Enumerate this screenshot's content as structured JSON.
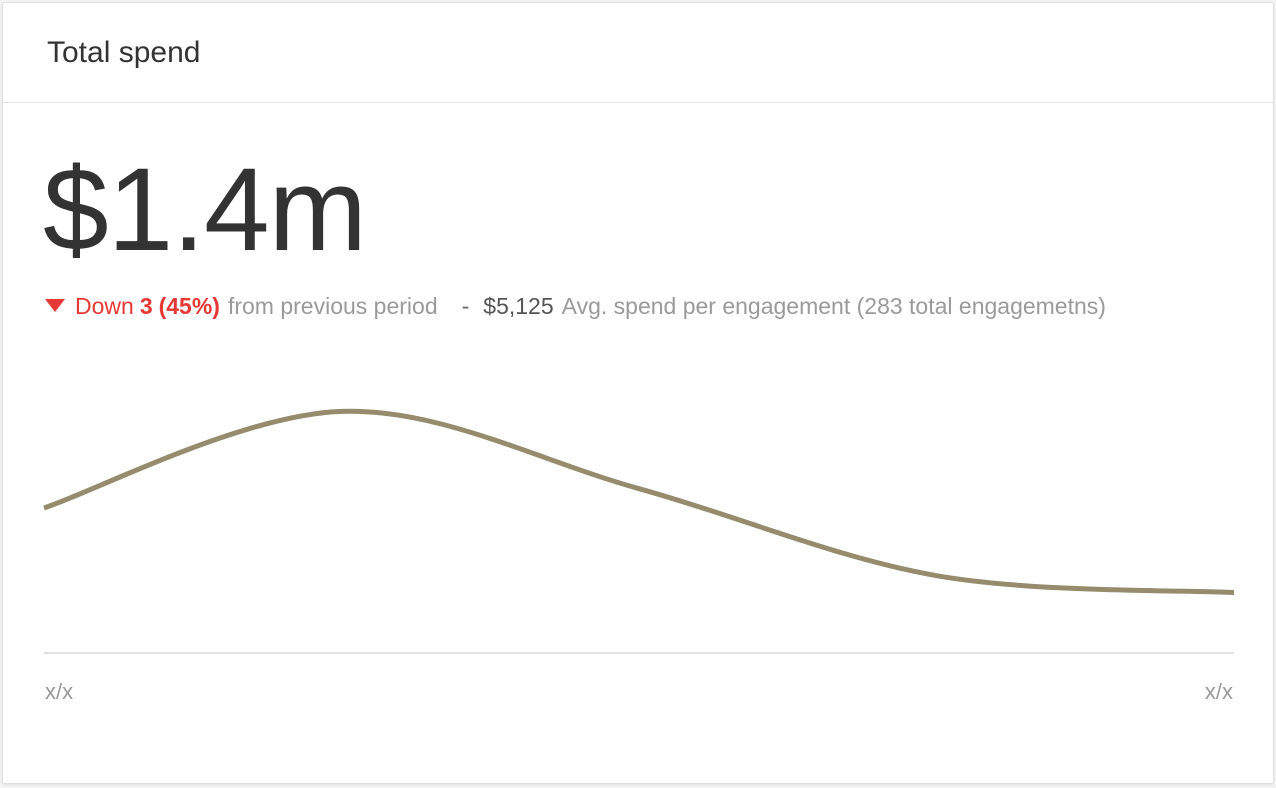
{
  "card": {
    "title": "Total spend",
    "value": "$1.4m"
  },
  "summary": {
    "direction_label": "Down",
    "change_count": "3",
    "change_percent": "(45%)",
    "change_suffix": "from previous period",
    "separator": "-",
    "avg_value": "$5,125",
    "avg_label": "Avg. spend per engagement (283 total engagemetns)"
  },
  "colors": {
    "line": "#968b6c",
    "down": "#e53935",
    "text": "#333333",
    "muted": "#9a9a9a"
  },
  "icons": {
    "trend": "caret-down-icon"
  },
  "chart_data": {
    "type": "line",
    "x": [
      0,
      0.25,
      0.5,
      0.75,
      1.0
    ],
    "xlabels": [
      "x/x",
      "x/x"
    ],
    "series": [
      {
        "values": [
          0.6,
          1.0,
          0.68,
          0.32,
          0.25
        ]
      }
    ],
    "ylim": [
      0,
      1.2
    ],
    "grid": false,
    "legend": "none"
  }
}
